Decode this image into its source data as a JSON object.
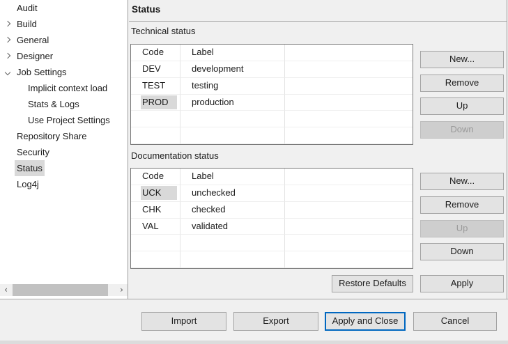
{
  "colors": {
    "selection_gray": "#d9d9d9",
    "default_button_accent": "#0067c0",
    "panel_background": "#f0f0f0",
    "disabled_text": "#9a9a9a"
  },
  "tree": {
    "items": [
      {
        "label": "Audit",
        "level": 1,
        "arrow": "none",
        "selected": false
      },
      {
        "label": "Build",
        "level": 1,
        "arrow": "collapsed",
        "selected": false
      },
      {
        "label": "General",
        "level": 1,
        "arrow": "collapsed",
        "selected": false
      },
      {
        "label": "Designer",
        "level": 1,
        "arrow": "collapsed",
        "selected": false
      },
      {
        "label": "Job Settings",
        "level": 1,
        "arrow": "expanded",
        "selected": false
      },
      {
        "label": "Implicit context load",
        "level": 2,
        "arrow": "none",
        "selected": false
      },
      {
        "label": "Stats & Logs",
        "level": 2,
        "arrow": "none",
        "selected": false
      },
      {
        "label": "Use Project Settings",
        "level": 2,
        "arrow": "none",
        "selected": false
      },
      {
        "label": "Repository Share",
        "level": 1,
        "arrow": "none",
        "selected": false
      },
      {
        "label": "Security",
        "level": 1,
        "arrow": "none",
        "selected": false
      },
      {
        "label": "Status",
        "level": 1,
        "arrow": "none",
        "selected": true
      },
      {
        "label": "Log4j",
        "level": 1,
        "arrow": "none",
        "selected": false
      }
    ]
  },
  "page": {
    "title": "Status",
    "sections": [
      {
        "label": "Technical status",
        "columns": [
          "Code",
          "Label"
        ],
        "rows": [
          {
            "code": "DEV",
            "label": "development",
            "code_selected": false
          },
          {
            "code": "TEST",
            "label": "testing",
            "code_selected": false
          },
          {
            "code": "PROD",
            "label": "production",
            "code_selected": true
          }
        ],
        "empty_rows": 2,
        "buttons": [
          {
            "label": "New...",
            "enabled": true
          },
          {
            "label": "Remove",
            "enabled": true
          },
          {
            "label": "Up",
            "enabled": true
          },
          {
            "label": "Down",
            "enabled": false
          }
        ]
      },
      {
        "label": "Documentation status",
        "columns": [
          "Code",
          "Label"
        ],
        "rows": [
          {
            "code": "UCK",
            "label": "unchecked",
            "code_selected": true
          },
          {
            "code": "CHK",
            "label": "checked",
            "code_selected": false
          },
          {
            "code": "VAL",
            "label": "validated",
            "code_selected": false
          }
        ],
        "empty_rows": 2,
        "buttons": [
          {
            "label": "New...",
            "enabled": true
          },
          {
            "label": "Remove",
            "enabled": true
          },
          {
            "label": "Up",
            "enabled": false
          },
          {
            "label": "Down",
            "enabled": true
          }
        ]
      }
    ],
    "footer_buttons": [
      {
        "label": "Restore Defaults",
        "enabled": true
      },
      {
        "label": "Apply",
        "enabled": true
      }
    ]
  },
  "dialog_buttons": [
    {
      "label": "Import",
      "default": false
    },
    {
      "label": "Export",
      "default": false
    },
    {
      "label": "Apply and Close",
      "default": true
    },
    {
      "label": "Cancel",
      "default": false
    }
  ],
  "scrollbar": {
    "left_arrow": "‹",
    "right_arrow": "›"
  }
}
